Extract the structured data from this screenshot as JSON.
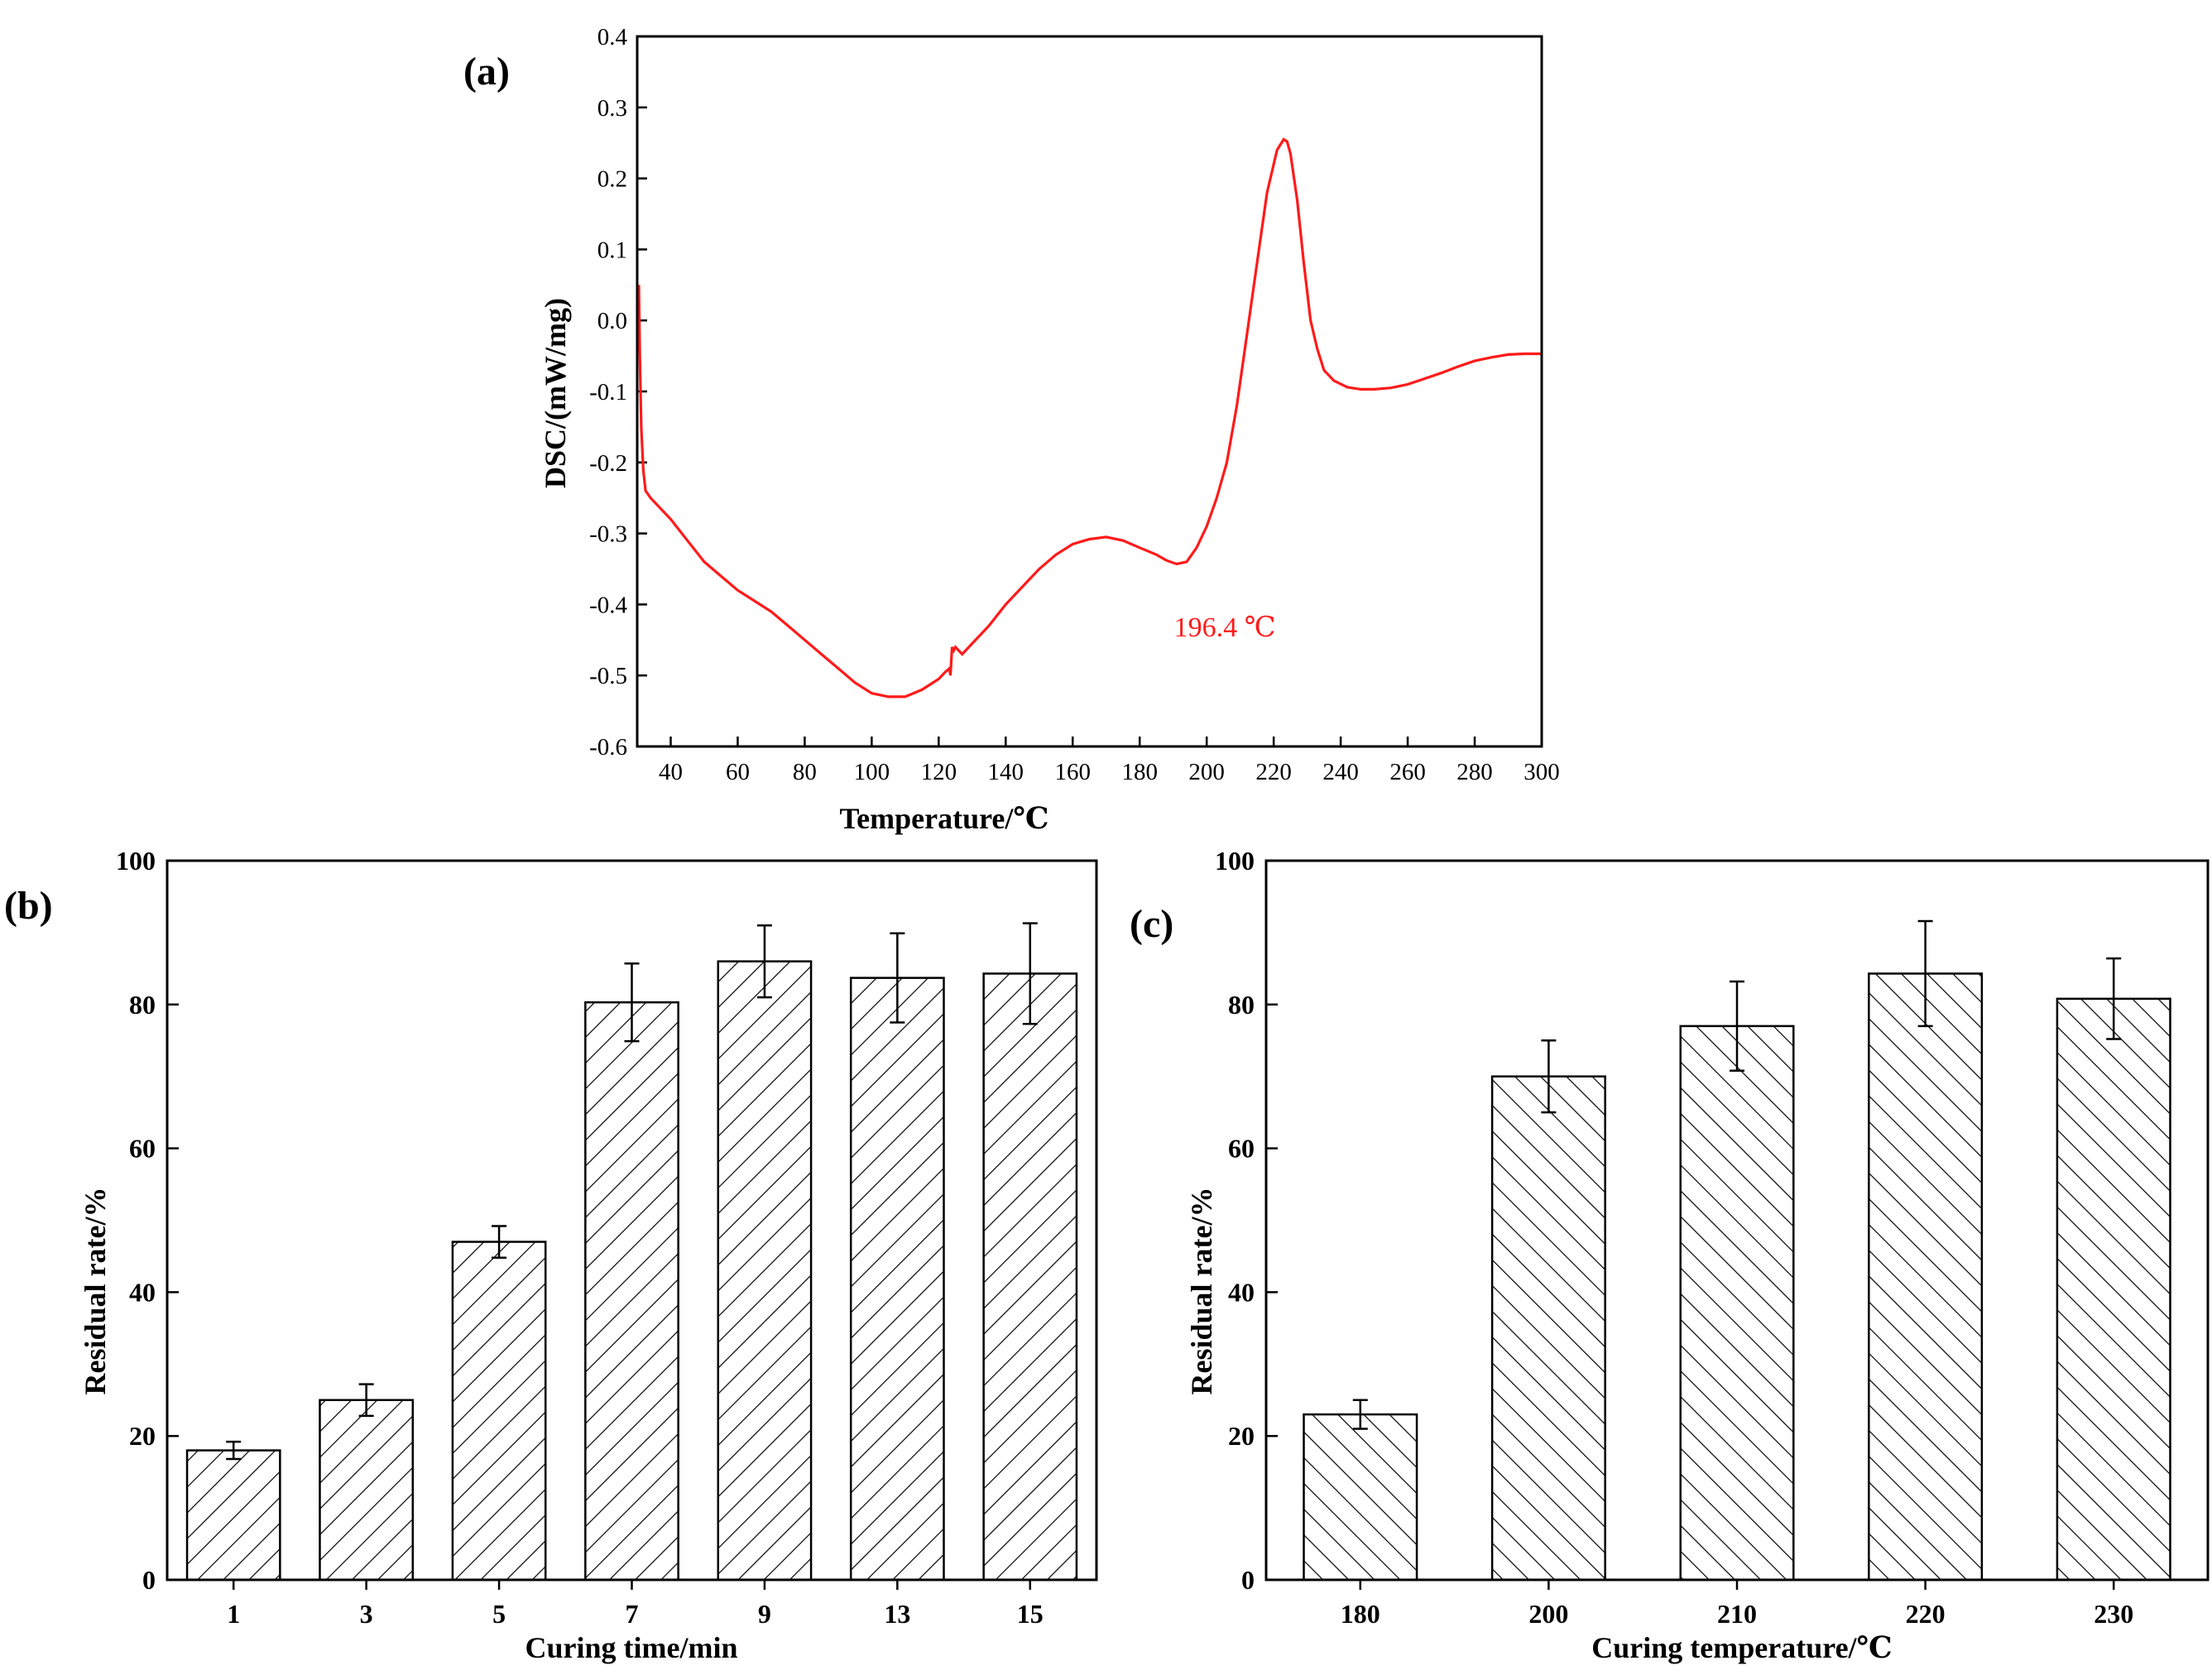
{
  "chart_data": [
    {
      "panel": "(a)",
      "type": "line",
      "xlabel": "Temperature/℃",
      "ylabel": "DSC/(mW/mg)",
      "xlim": [
        30,
        300
      ],
      "ylim": [
        -0.6,
        0.4
      ],
      "xticks": [
        40,
        60,
        80,
        100,
        120,
        140,
        160,
        180,
        200,
        220,
        240,
        260,
        280,
        300
      ],
      "yticks": [
        -0.6,
        -0.5,
        -0.4,
        -0.3,
        -0.2,
        -0.1,
        0.0,
        0.1,
        0.2,
        0.3,
        0.4
      ],
      "ytick_labels": [
        "-0.6",
        "-0.5",
        "-0.4",
        "-0.3",
        "-0.2",
        "-0.1",
        "0.0",
        "0.1",
        "0.2",
        "0.3",
        "0.4"
      ],
      "line_color": "#ff1a1a",
      "annotation": {
        "text": "196.4 ℃",
        "x": 196.4,
        "y": -0.34
      },
      "series": [
        {
          "name": "DSC",
          "x": [
            30.5,
            30.8,
            31.2,
            31.8,
            32.5,
            34,
            36,
            40,
            45,
            50,
            55,
            60,
            65,
            70,
            75,
            80,
            85,
            90,
            95,
            100,
            105,
            110,
            115,
            120,
            122,
            123.2,
            123.5,
            124,
            124.5,
            125,
            127,
            130,
            135,
            140,
            145,
            150,
            155,
            160,
            165,
            170,
            175,
            180,
            185,
            188,
            191,
            194,
            197,
            200,
            203,
            206,
            209,
            212,
            215,
            218,
            221,
            223,
            224,
            225,
            227,
            229,
            231,
            233,
            235,
            238,
            242,
            246,
            250,
            255,
            260,
            265,
            270,
            275,
            280,
            285,
            290,
            295,
            300
          ],
          "y": [
            0.05,
            -0.05,
            -0.15,
            -0.21,
            -0.24,
            -0.25,
            -0.26,
            -0.28,
            -0.31,
            -0.34,
            -0.36,
            -0.38,
            -0.395,
            -0.41,
            -0.43,
            -0.45,
            -0.47,
            -0.49,
            -0.51,
            -0.525,
            -0.53,
            -0.53,
            -0.52,
            -0.505,
            -0.495,
            -0.49,
            -0.5,
            -0.46,
            -0.465,
            -0.46,
            -0.47,
            -0.455,
            -0.43,
            -0.4,
            -0.375,
            -0.35,
            -0.33,
            -0.315,
            -0.308,
            -0.305,
            -0.31,
            -0.32,
            -0.33,
            -0.338,
            -0.343,
            -0.34,
            -0.32,
            -0.29,
            -0.25,
            -0.2,
            -0.12,
            -0.02,
            0.08,
            0.18,
            0.24,
            0.255,
            0.252,
            0.235,
            0.17,
            0.08,
            0.0,
            -0.04,
            -0.07,
            -0.085,
            -0.094,
            -0.097,
            -0.097,
            -0.095,
            -0.09,
            -0.082,
            -0.074,
            -0.065,
            -0.057,
            -0.052,
            -0.048,
            -0.047,
            -0.047
          ]
        }
      ]
    },
    {
      "panel": "(b)",
      "type": "bar",
      "xlabel": "Curing time/min",
      "ylabel": "Residual rate/%",
      "categories": [
        "1",
        "3",
        "5",
        "7",
        "9",
        "13",
        "15"
      ],
      "values": [
        18,
        25,
        47,
        80.3,
        86,
        83.7,
        84.3
      ],
      "errors": [
        1.2,
        2.2,
        2.2,
        5.4,
        5.0,
        6.2,
        7.0
      ],
      "ylim": [
        0,
        100
      ],
      "yticks": [
        0,
        20,
        40,
        60,
        80,
        100
      ],
      "hatch": "backslash"
    },
    {
      "panel": "(c)",
      "type": "bar",
      "xlabel": "Curing temperature/℃",
      "ylabel": "Residual rate/%",
      "categories": [
        "180",
        "200",
        "210",
        "220",
        "230"
      ],
      "values": [
        23,
        70,
        77,
        84.3,
        80.8
      ],
      "errors": [
        2.0,
        5.0,
        6.2,
        7.3,
        5.6
      ],
      "ylim": [
        0,
        100
      ],
      "yticks": [
        0,
        20,
        40,
        60,
        80,
        100
      ],
      "hatch": "slash"
    }
  ]
}
